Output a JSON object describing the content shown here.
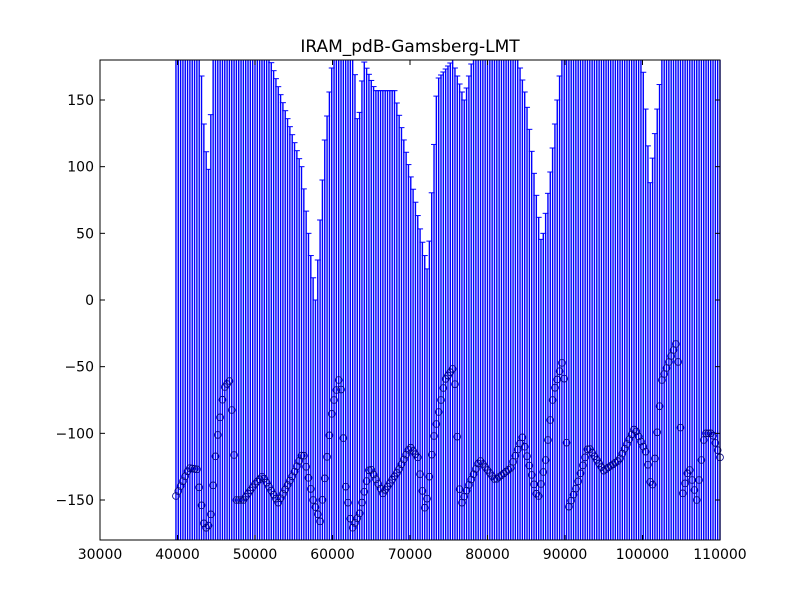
{
  "chart_data": {
    "type": "scatter",
    "title": "IRAM_pdB-Gamsberg-LMT",
    "xlabel": "",
    "ylabel": "",
    "xlim": [
      30000,
      110000
    ],
    "ylim": [
      -180,
      180
    ],
    "xticks": [
      30000,
      40000,
      50000,
      60000,
      70000,
      80000,
      90000,
      100000,
      110000
    ],
    "yticks": [
      -150,
      -100,
      -50,
      0,
      50,
      100,
      150
    ],
    "xtick_labels": [
      "30000",
      "40000",
      "50000",
      "60000",
      "70000",
      "80000",
      "90000",
      "100000",
      "110000"
    ],
    "ytick_labels": [
      "−150",
      "−100",
      "−50",
      "0",
      "50",
      "100",
      "150"
    ],
    "grid": false,
    "legend": "none",
    "colors": {
      "errorbar": "#0000ff",
      "marker_edge": "#000080",
      "frame": "#000000"
    },
    "series": [
      {
        "kind": "phase_with_errorbars",
        "x_start": 39800,
        "x_end": 110000,
        "x_step": 300,
        "error_upper_envelope": [
          [
            39800,
            180
          ],
          [
            43000,
            180
          ],
          [
            43500,
            120
          ],
          [
            44000,
            98
          ],
          [
            44600,
            180
          ],
          [
            52000,
            180
          ],
          [
            56000,
            100
          ],
          [
            57800,
            0
          ],
          [
            59000,
            120
          ],
          [
            60000,
            180
          ],
          [
            62800,
            180
          ],
          [
            63300,
            125
          ],
          [
            64000,
            180
          ],
          [
            65500,
            157
          ],
          [
            68000,
            157
          ],
          [
            70500,
            80
          ],
          [
            72300,
            20
          ],
          [
            73500,
            165
          ],
          [
            75500,
            180
          ],
          [
            77000,
            150
          ],
          [
            78000,
            180
          ],
          [
            84000,
            180
          ],
          [
            85000,
            150
          ],
          [
            87000,
            40
          ],
          [
            88000,
            90
          ],
          [
            89500,
            180
          ],
          [
            100000,
            180
          ],
          [
            101000,
            88
          ],
          [
            102500,
            180
          ],
          [
            110000,
            180
          ]
        ],
        "phase_curve": [
          [
            39800,
            -147
          ],
          [
            41500,
            -126
          ],
          [
            42500,
            -127
          ],
          [
            43500,
            -172
          ],
          [
            44200,
            -168
          ],
          [
            45000,
            -110
          ],
          [
            46000,
            -66
          ],
          [
            46800,
            -60
          ],
          [
            47600,
            -150
          ],
          [
            48500,
            -150
          ],
          [
            50000,
            -138
          ],
          [
            51000,
            -132
          ],
          [
            53000,
            -152
          ],
          [
            55000,
            -130
          ],
          [
            56200,
            -114
          ],
          [
            57500,
            -150
          ],
          [
            58400,
            -166
          ],
          [
            60000,
            -80
          ],
          [
            61000,
            -55
          ],
          [
            61700,
            -140
          ],
          [
            62500,
            -172
          ],
          [
            63500,
            -160
          ],
          [
            64800,
            -125
          ],
          [
            66500,
            -145
          ],
          [
            68500,
            -128
          ],
          [
            70000,
            -110
          ],
          [
            71000,
            -118
          ],
          [
            72000,
            -160
          ],
          [
            73000,
            -105
          ],
          [
            74500,
            -60
          ],
          [
            75700,
            -50
          ],
          [
            76500,
            -155
          ],
          [
            77500,
            -140
          ],
          [
            79000,
            -120
          ],
          [
            81000,
            -135
          ],
          [
            83000,
            -126
          ],
          [
            84500,
            -103
          ],
          [
            86500,
            -150
          ],
          [
            87500,
            -120
          ],
          [
            88500,
            -70
          ],
          [
            89800,
            -43
          ],
          [
            90500,
            -155
          ],
          [
            91500,
            -140
          ],
          [
            93000,
            -110
          ],
          [
            95000,
            -128
          ],
          [
            97000,
            -120
          ],
          [
            99000,
            -96
          ],
          [
            100500,
            -115
          ],
          [
            101200,
            -145
          ],
          [
            102500,
            -60
          ],
          [
            103500,
            -45
          ],
          [
            104500,
            -30
          ],
          [
            105200,
            -145
          ],
          [
            106000,
            -125
          ],
          [
            107000,
            -150
          ],
          [
            108000,
            -100
          ],
          [
            109000,
            -100
          ],
          [
            110000,
            -118
          ]
        ]
      }
    ]
  }
}
